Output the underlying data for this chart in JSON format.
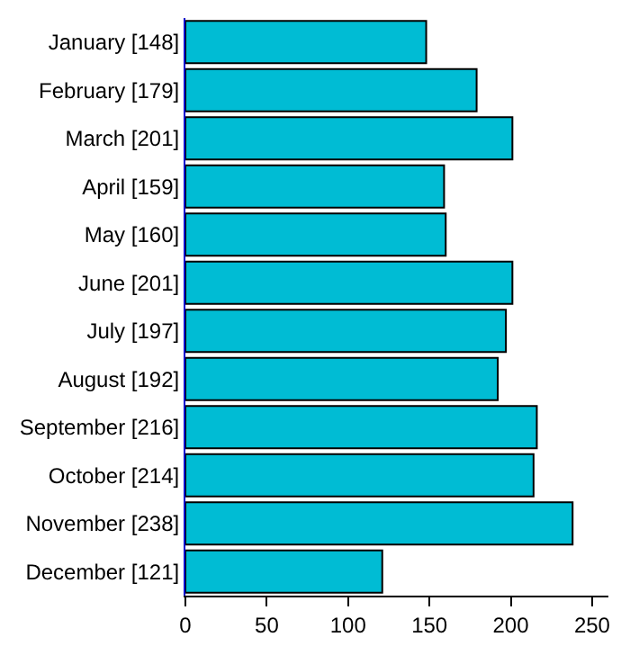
{
  "chart_data": {
    "type": "bar",
    "orientation": "horizontal",
    "categories": [
      "January [148]",
      "February [179]",
      "March [201]",
      "April [159]",
      "May [160]",
      "June [201]",
      "July [197]",
      "August [192]",
      "September [216]",
      "October [214]",
      "November [238]",
      "December [121]"
    ],
    "values": [
      148,
      179,
      201,
      159,
      160,
      201,
      197,
      192,
      216,
      214,
      238,
      121
    ],
    "color": "#00bcd4",
    "xlim": [
      0,
      260
    ],
    "xticks": [
      0,
      50,
      100,
      150,
      200,
      250
    ]
  }
}
